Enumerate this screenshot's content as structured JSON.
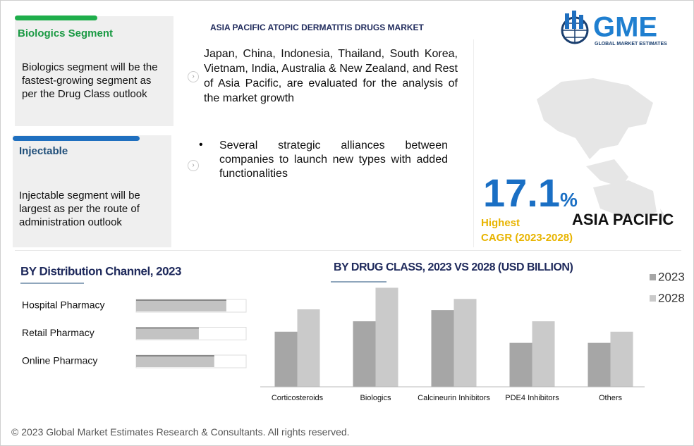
{
  "header": {
    "title": "ASIA PACIFIC ATOPIC DERMATITIS DRUGS MARKET",
    "logo": "GME",
    "logo_subtitle": "GLOBAL MARKET ESTIMATES"
  },
  "segments": [
    {
      "title": "Biologics Segment",
      "text": "Biologics segment will be the fastest-growing segment as per the Drug Class outlook"
    },
    {
      "title": "Injectable",
      "text": "Injectable segment will be largest as per the route of administration outlook"
    }
  ],
  "bullets": [
    "Japan, China, Indonesia, Thailand, South Korea, Vietnam, India, Australia & New Zealand, and Rest of Asia Pacific, are evaluated for the analysis of the market growth",
    "Several strategic alliances between companies to launch new types with added functionalities"
  ],
  "highlight": {
    "value": 17.1,
    "unit": "%",
    "label": "Highest",
    "sublabel": "CAGR (2023-2028)",
    "region": "ASIA PACIFIC"
  },
  "chart_data": [
    {
      "type": "bar",
      "orientation": "horizontal",
      "title": "BY Distribution Channel, 2023",
      "categories": [
        "Hospital Pharmacy",
        "Retail Pharmacy",
        "Online Pharmacy"
      ],
      "values": [
        82,
        57,
        71
      ],
      "xlim": [
        0,
        100
      ],
      "color": "#c3c3c3"
    },
    {
      "type": "bar",
      "title": "BY DRUG CLASS, 2023 VS 2028 (USD BILLION)",
      "categories": [
        "Corticosteroids",
        "Biologics",
        "Calcineurin Inhibitors",
        "PDE4 Inhibitors",
        "Others"
      ],
      "series": [
        {
          "name": "2023",
          "color": "#a6a6a6",
          "values": [
            74,
            88,
            103,
            59,
            59
          ]
        },
        {
          "name": "2028",
          "color": "#cacaca",
          "values": [
            104,
            133,
            118,
            88,
            74
          ]
        }
      ],
      "ylim": [
        0,
        140
      ],
      "legend": "right"
    }
  ],
  "footer": "© 2023 Global Market Estimates Research & Consultants. All rights reserved."
}
